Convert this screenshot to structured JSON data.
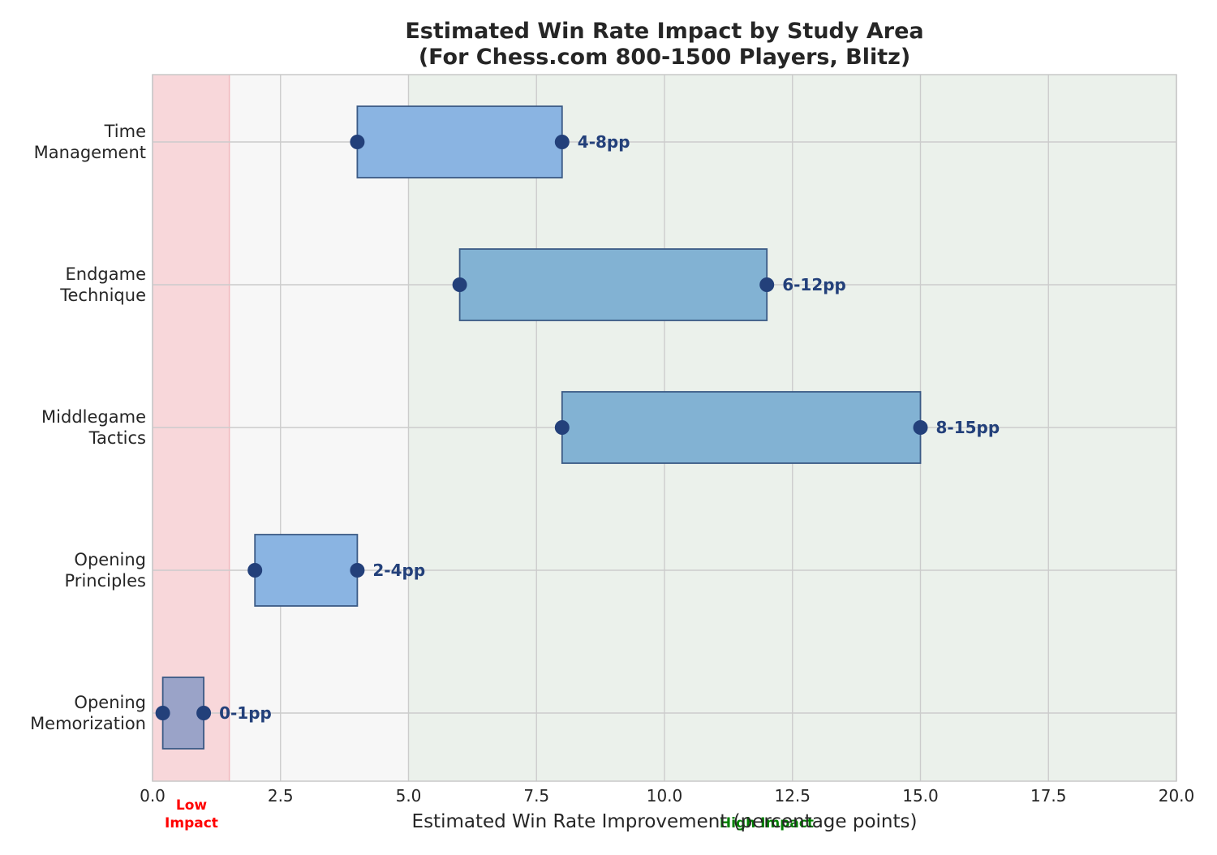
{
  "chart_data": {
    "type": "bar",
    "orientation": "horizontal-range",
    "title": "Estimated Win Rate Impact by Study Area",
    "subtitle": "(For Chess.com 800-1500 Players, Blitz)",
    "xlabel": "Estimated Win Rate Improvement (percentage points)",
    "ylabel": "",
    "xlim": [
      0,
      20
    ],
    "xticks": [
      "0.0",
      "2.5",
      "5.0",
      "7.5",
      "10.0",
      "12.5",
      "15.0",
      "17.5",
      "20.0"
    ],
    "grid": true,
    "categories": [
      "Opening\nMemorization",
      "Opening\nPrinciples",
      "Middlegame\nTactics",
      "Endgame\nTechnique",
      "Time\nManagement"
    ],
    "ranges": [
      {
        "low": 0.2,
        "high": 1.0,
        "label": "0-1pp",
        "color": "#9aa3c8"
      },
      {
        "low": 2.0,
        "high": 4.0,
        "label": "2-4pp",
        "color": "#8ab4e2"
      },
      {
        "low": 8.0,
        "high": 15.0,
        "label": "8-15pp",
        "color": "#82b2d3"
      },
      {
        "low": 6.0,
        "high": 12.0,
        "label": "6-12pp",
        "color": "#82b2d3"
      },
      {
        "low": 4.0,
        "high": 8.0,
        "label": "4-8pp",
        "color": "#8ab4e2"
      }
    ],
    "zones": [
      {
        "name": "Low\nImpact",
        "from": 0,
        "to": 1.5,
        "color": "#f8d7da",
        "label_color": "#ff0000"
      },
      {
        "name": "",
        "from": 1.5,
        "to": 5.0,
        "color": "#f7f7f7",
        "label_color": ""
      },
      {
        "name": "High Impact",
        "from": 5.0,
        "to": 20.0,
        "color": "#ebf1eb",
        "label_color": "#008000"
      }
    ],
    "colors": {
      "marker": "#23407a",
      "bar_edge": "#3b5a85",
      "label": "#23407a",
      "grid": "#cccccc"
    }
  }
}
